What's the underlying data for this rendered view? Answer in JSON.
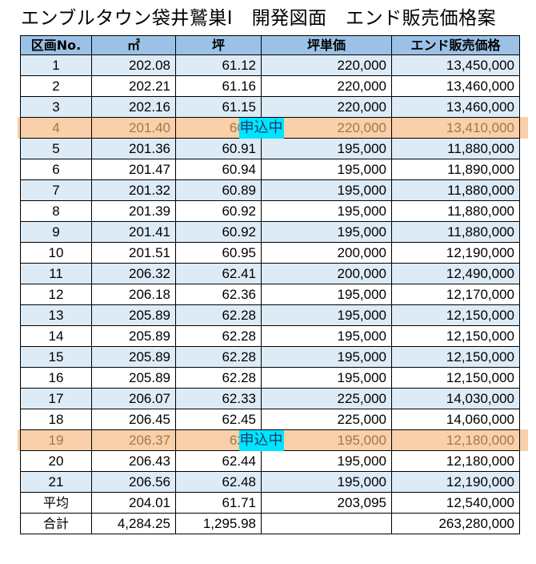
{
  "title": "エンブルタウン袋井鷲巣Ⅰ　開発図面　エンド販売価格案",
  "headers": [
    "区画No.",
    "㎡",
    "坪",
    "坪単価",
    "エンド販売価格"
  ],
  "rows": [
    {
      "no": "1",
      "sqm": "202.08",
      "tsubo": "61.12",
      "unit": "220,000",
      "price": "13,450,000",
      "reserved": false
    },
    {
      "no": "2",
      "sqm": "202.21",
      "tsubo": "61.16",
      "unit": "220,000",
      "price": "13,460,000",
      "reserved": false
    },
    {
      "no": "3",
      "sqm": "202.16",
      "tsubo": "61.15",
      "unit": "220,000",
      "price": "13,460,000",
      "reserved": false
    },
    {
      "no": "4",
      "sqm": "201.40",
      "tsubo": "60.9",
      "unit": "220,000",
      "price": "13,410,000",
      "reserved": true
    },
    {
      "no": "5",
      "sqm": "201.36",
      "tsubo": "60.91",
      "unit": "195,000",
      "price": "11,880,000",
      "reserved": false
    },
    {
      "no": "6",
      "sqm": "201.47",
      "tsubo": "60.94",
      "unit": "195,000",
      "price": "11,890,000",
      "reserved": false
    },
    {
      "no": "7",
      "sqm": "201.32",
      "tsubo": "60.89",
      "unit": "195,000",
      "price": "11,880,000",
      "reserved": false
    },
    {
      "no": "8",
      "sqm": "201.39",
      "tsubo": "60.92",
      "unit": "195,000",
      "price": "11,880,000",
      "reserved": false
    },
    {
      "no": "9",
      "sqm": "201.41",
      "tsubo": "60.92",
      "unit": "195,000",
      "price": "11,880,000",
      "reserved": false
    },
    {
      "no": "10",
      "sqm": "201.51",
      "tsubo": "60.95",
      "unit": "200,000",
      "price": "12,190,000",
      "reserved": false
    },
    {
      "no": "11",
      "sqm": "206.32",
      "tsubo": "62.41",
      "unit": "200,000",
      "price": "12,490,000",
      "reserved": false
    },
    {
      "no": "12",
      "sqm": "206.18",
      "tsubo": "62.36",
      "unit": "195,000",
      "price": "12,170,000",
      "reserved": false
    },
    {
      "no": "13",
      "sqm": "205.89",
      "tsubo": "62.28",
      "unit": "195,000",
      "price": "12,150,000",
      "reserved": false
    },
    {
      "no": "14",
      "sqm": "205.89",
      "tsubo": "62.28",
      "unit": "195,000",
      "price": "12,150,000",
      "reserved": false
    },
    {
      "no": "15",
      "sqm": "205.89",
      "tsubo": "62.28",
      "unit": "195,000",
      "price": "12,150,000",
      "reserved": false
    },
    {
      "no": "16",
      "sqm": "205.89",
      "tsubo": "62.28",
      "unit": "195,000",
      "price": "12,150,000",
      "reserved": false
    },
    {
      "no": "17",
      "sqm": "206.07",
      "tsubo": "62.33",
      "unit": "225,000",
      "price": "14,030,000",
      "reserved": false
    },
    {
      "no": "18",
      "sqm": "206.45",
      "tsubo": "62.45",
      "unit": "225,000",
      "price": "14,060,000",
      "reserved": false
    },
    {
      "no": "19",
      "sqm": "206.37",
      "tsubo": "62.4",
      "unit": "195,000",
      "price": "12,180,000",
      "reserved": true
    },
    {
      "no": "20",
      "sqm": "206.43",
      "tsubo": "62.44",
      "unit": "195,000",
      "price": "12,180,000",
      "reserved": false
    },
    {
      "no": "21",
      "sqm": "206.56",
      "tsubo": "62.48",
      "unit": "195,000",
      "price": "12,190,000",
      "reserved": false
    }
  ],
  "average": {
    "label": "平均",
    "sqm": "204.01",
    "tsubo": "61.71",
    "unit": "203,095",
    "price": "12,540,000"
  },
  "total": {
    "label": "合計",
    "sqm": "4,284.25",
    "tsubo": "1,295.98",
    "unit": "",
    "price": "263,280,000"
  },
  "reserved_badge": "申込中",
  "colors": {
    "header": "#9bc2e6",
    "stripe": "#ddebf7",
    "reserved_band": "#f8cba0",
    "badge": "#00e5ff"
  }
}
